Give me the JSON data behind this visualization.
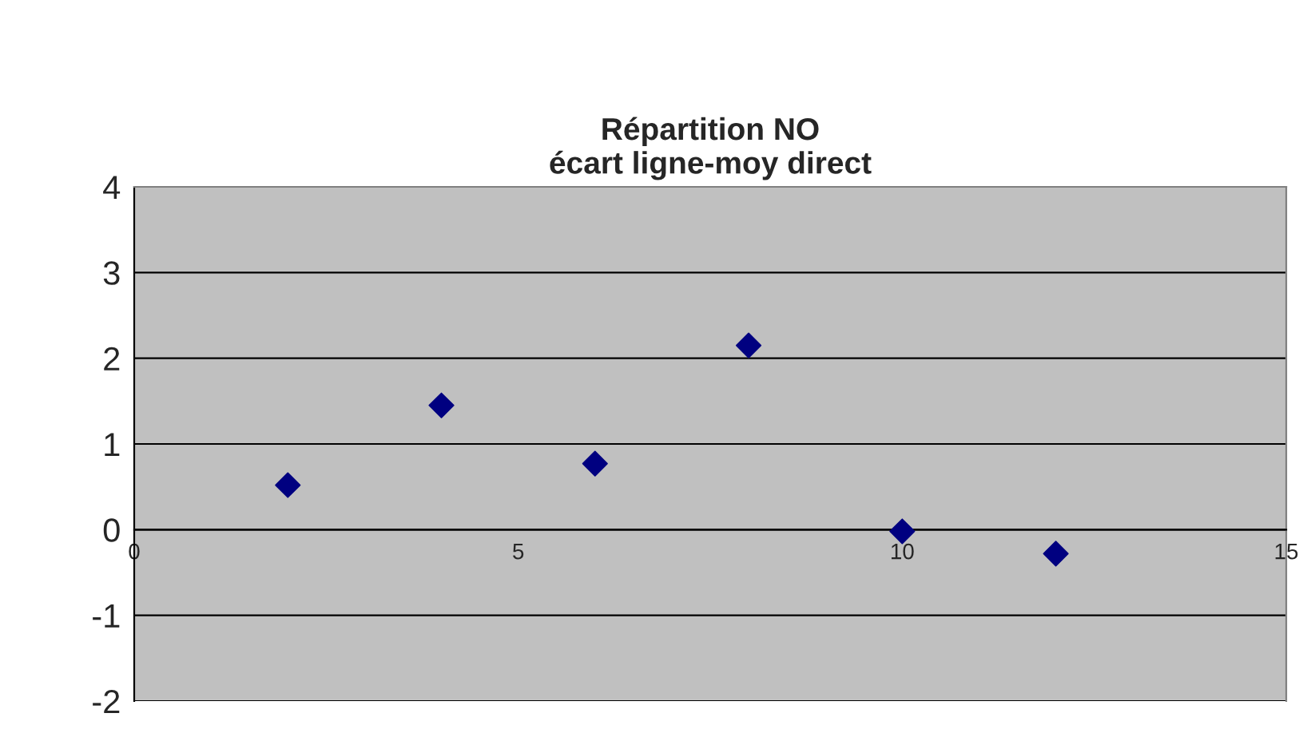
{
  "chart_data": {
    "type": "scatter",
    "title": "Répartition NO\nécart ligne-moy direct",
    "x": [
      2,
      4,
      6,
      8,
      10,
      12
    ],
    "series": [
      {
        "color": "#000080",
        "values": [
          0.52,
          1.45,
          0.77,
          2.15,
          -0.02,
          -0.28
        ]
      }
    ],
    "xlim": [
      0,
      15
    ],
    "xticks": [
      0,
      5,
      10,
      15
    ],
    "ylim": [
      -2,
      4
    ],
    "yticks": [
      -2,
      -1,
      0,
      1,
      2,
      3,
      4
    ],
    "grid": "y",
    "marker": "diamond",
    "legend": false
  }
}
